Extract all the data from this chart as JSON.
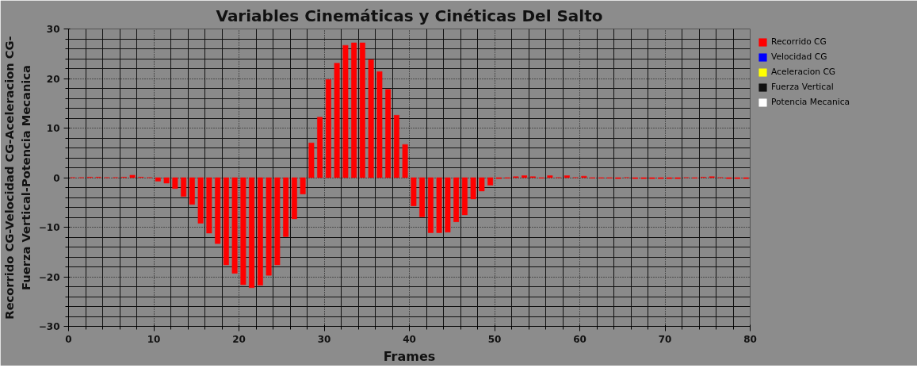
{
  "chart_data": {
    "type": "bar",
    "title": "Variables Cinemáticas y Cinéticas Del Salto",
    "xlabel": "Frames",
    "ylabel": "Recorrido CG-Velocidad CG-Aceleracion CG-\nFuerza Vertical-Potencia Mecanica",
    "x": [
      0.5,
      1.5,
      2.5,
      3.5,
      4.5,
      5.5,
      6.5,
      7.5,
      8.5,
      9.5,
      10.5,
      11.5,
      12.5,
      13.5,
      14.5,
      15.5,
      16.5,
      17.5,
      18.5,
      19.5,
      20.5,
      21.5,
      22.5,
      23.5,
      24.5,
      25.5,
      26.5,
      27.5,
      28.5,
      29.5,
      30.5,
      31.5,
      32.5,
      33.5,
      34.5,
      35.5,
      36.5,
      37.5,
      38.5,
      39.5,
      40.5,
      41.5,
      42.5,
      43.5,
      44.5,
      45.5,
      46.5,
      47.5,
      48.5,
      49.5,
      50.5,
      51.5,
      52.5,
      53.5,
      54.5,
      55.5,
      56.5,
      57.5,
      58.5,
      59.5,
      60.5,
      61.5,
      62.5,
      63.5,
      64.5,
      65.5,
      66.5,
      67.5,
      68.5,
      69.5,
      70.5,
      71.5,
      72.5,
      73.5,
      74.5,
      75.5,
      76.5,
      77.5,
      78.5,
      79.5
    ],
    "series": [
      {
        "name": "Recorrido CG",
        "color": "#ff0000",
        "values": [
          0,
          0,
          0.1,
          0.1,
          0,
          0,
          0.1,
          0.5,
          0.1,
          0,
          -0.7,
          -1.1,
          -2.2,
          -3.8,
          -5.4,
          -9.2,
          -11.2,
          -13.3,
          -17.6,
          -19.3,
          -21.6,
          -22.2,
          -21.7,
          -19.7,
          -17.6,
          -11.9,
          -8.3,
          -3.3,
          7.0,
          12.2,
          19.8,
          23.1,
          26.7,
          27.2,
          27.2,
          23.8,
          21.4,
          17.8,
          12.6,
          6.7,
          -5.7,
          -7.9,
          -11.1,
          -11.1,
          -11.0,
          -8.9,
          -7.5,
          -4.3,
          -2.7,
          -1.5,
          -0.2,
          -0.1,
          0.2,
          0.4,
          0.2,
          -0.1,
          0.4,
          0,
          0.4,
          0,
          0.3,
          -0.1,
          -0.1,
          -0.1,
          -0.2,
          0,
          -0.2,
          -0.2,
          -0.2,
          -0.2,
          -0.2,
          -0.2,
          0,
          -0.1,
          0.1,
          0.2,
          0,
          -0.2,
          -0.2,
          -0.2
        ]
      },
      {
        "name": "Velocidad CG",
        "color": "#0000ff",
        "values": [
          null,
          null,
          null,
          null,
          null,
          null,
          null,
          null,
          null,
          null,
          null,
          null,
          null,
          null,
          null,
          null,
          null,
          null,
          null,
          null,
          null,
          null,
          null,
          null,
          null,
          null,
          null,
          null,
          null,
          null,
          null,
          null,
          null,
          null,
          null,
          null,
          null,
          null,
          null,
          null,
          null,
          null,
          null,
          null,
          null,
          null,
          null,
          null,
          null,
          null,
          null,
          null,
          null,
          null,
          null,
          null,
          null,
          null,
          null,
          null,
          null,
          null,
          null,
          null,
          null,
          null,
          null,
          null,
          null,
          null,
          null,
          null,
          null,
          null,
          null,
          null,
          null,
          null,
          null,
          null
        ]
      },
      {
        "name": "Aceleracion CG",
        "color": "#ffff00",
        "values": [
          null,
          null,
          null,
          null,
          null,
          null,
          null,
          null,
          null,
          null,
          null,
          null,
          null,
          null,
          null,
          null,
          null,
          null,
          null,
          null,
          null,
          null,
          null,
          null,
          null,
          null,
          null,
          null,
          null,
          null,
          null,
          null,
          null,
          null,
          null,
          null,
          null,
          null,
          null,
          null,
          null,
          null,
          null,
          null,
          null,
          null,
          null,
          null,
          null,
          null,
          null,
          null,
          null,
          null,
          null,
          null,
          null,
          null,
          null,
          null,
          null,
          null,
          null,
          null,
          null,
          null,
          null,
          null,
          null,
          null,
          null,
          null,
          null,
          null,
          null,
          null,
          null,
          null,
          null,
          null
        ]
      },
      {
        "name": "Fuerza Vertical",
        "color": "#111111",
        "values": [
          null,
          null,
          null,
          null,
          null,
          null,
          null,
          null,
          null,
          null,
          null,
          null,
          null,
          null,
          null,
          null,
          null,
          null,
          null,
          null,
          null,
          null,
          null,
          null,
          null,
          null,
          null,
          null,
          null,
          null,
          null,
          null,
          null,
          null,
          null,
          null,
          null,
          null,
          null,
          null,
          null,
          null,
          null,
          null,
          null,
          null,
          null,
          null,
          null,
          null,
          null,
          null,
          null,
          null,
          null,
          null,
          null,
          null,
          null,
          null,
          null,
          null,
          null,
          null,
          null,
          null,
          null,
          null,
          null,
          null,
          null,
          null,
          null,
          null,
          null,
          null,
          null,
          null,
          null,
          null
        ]
      },
      {
        "name": "Potencia Mecanica",
        "color": "#ffffff",
        "values": [
          null,
          null,
          null,
          null,
          null,
          null,
          null,
          null,
          null,
          null,
          null,
          null,
          null,
          null,
          null,
          null,
          null,
          null,
          null,
          null,
          null,
          null,
          null,
          null,
          null,
          null,
          null,
          null,
          null,
          null,
          null,
          null,
          null,
          null,
          null,
          null,
          null,
          null,
          null,
          null,
          null,
          null,
          null,
          null,
          null,
          null,
          null,
          null,
          null,
          null,
          null,
          null,
          null,
          null,
          null,
          null,
          null,
          null,
          null,
          null,
          null,
          null,
          null,
          null,
          null,
          null,
          null,
          null,
          null,
          null,
          null,
          null,
          null,
          null,
          null,
          null,
          null,
          null,
          null,
          null
        ]
      }
    ],
    "xlim": [
      0,
      80
    ],
    "xticks": [
      0,
      10,
      20,
      30,
      40,
      50,
      60,
      70,
      80
    ],
    "ylim": [
      -30,
      30
    ],
    "yticks": [
      -30,
      -20,
      -10,
      0,
      10,
      20,
      30
    ],
    "grid": true,
    "legend": "right"
  }
}
